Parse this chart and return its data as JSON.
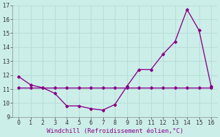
{
  "x": [
    0,
    1,
    2,
    3,
    4,
    5,
    6,
    7,
    8,
    9,
    10,
    11,
    12,
    13,
    14,
    15,
    16
  ],
  "y_curve": [
    11.9,
    11.3,
    11.1,
    10.7,
    9.8,
    9.8,
    9.6,
    9.5,
    9.9,
    11.2,
    12.4,
    12.4,
    13.5,
    14.4,
    16.7,
    15.2,
    11.2
  ],
  "y_flat": [
    11.1,
    11.1,
    11.1,
    11.1,
    11.1,
    11.1,
    11.1,
    11.1,
    11.1,
    11.1,
    11.1,
    11.1,
    11.1,
    11.1,
    11.1,
    11.1,
    11.1
  ],
  "line_color": "#880088",
  "bg_color": "#cceee8",
  "grid_color": "#b8ddd8",
  "xlabel": "Windchill (Refroidissement éolien,°C)",
  "ylim": [
    9,
    17
  ],
  "xlim": [
    -0.5,
    16.5
  ],
  "yticks": [
    9,
    10,
    11,
    12,
    13,
    14,
    15,
    16,
    17
  ],
  "xticks": [
    0,
    1,
    2,
    3,
    4,
    5,
    6,
    7,
    8,
    9,
    10,
    11,
    12,
    13,
    14,
    15,
    16
  ],
  "tick_fontsize": 6.0,
  "xlabel_fontsize": 6.5,
  "marker": "D",
  "markersize": 2.0,
  "linewidth": 1.0
}
